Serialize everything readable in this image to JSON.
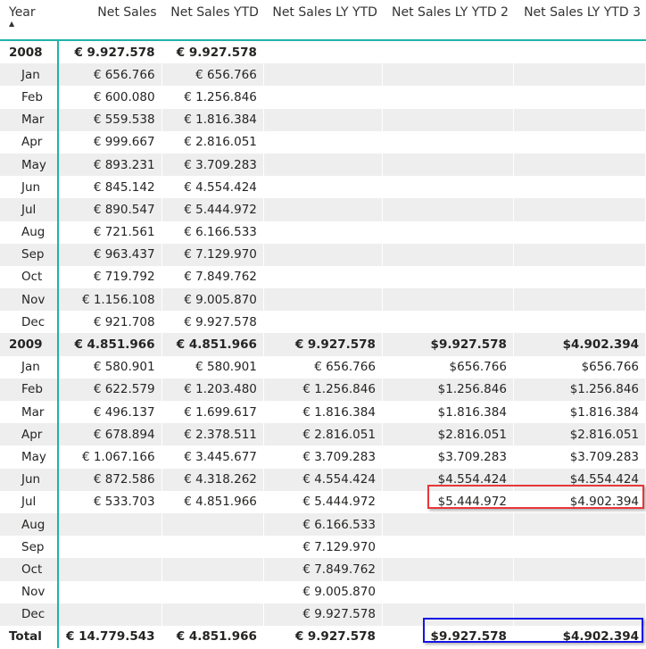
{
  "headers": [
    "Year",
    "Net Sales",
    "Net Sales YTD",
    "Net Sales LY YTD",
    "Net Sales LY YTD 2",
    "Net Sales LY YTD 3"
  ],
  "sort_icon": "sort-ascending-icon",
  "highlight_colors": {
    "red": "#e8363a",
    "blue": "#1414e6",
    "accent": "#20b2aa"
  },
  "rows": [
    {
      "label": "2008",
      "level": "year",
      "values": [
        "€ 9.927.578",
        "€ 9.927.578",
        "",
        "",
        ""
      ]
    },
    {
      "label": "Jan",
      "values": [
        "€ 656.766",
        "€ 656.766",
        "",
        "",
        ""
      ]
    },
    {
      "label": "Feb",
      "values": [
        "€ 600.080",
        "€ 1.256.846",
        "",
        "",
        ""
      ]
    },
    {
      "label": "Mar",
      "values": [
        "€ 559.538",
        "€ 1.816.384",
        "",
        "",
        ""
      ]
    },
    {
      "label": "Apr",
      "values": [
        "€ 999.667",
        "€ 2.816.051",
        "",
        "",
        ""
      ]
    },
    {
      "label": "May",
      "values": [
        "€ 893.231",
        "€ 3.709.283",
        "",
        "",
        ""
      ]
    },
    {
      "label": "Jun",
      "values": [
        "€ 845.142",
        "€ 4.554.424",
        "",
        "",
        ""
      ]
    },
    {
      "label": "Jul",
      "values": [
        "€ 890.547",
        "€ 5.444.972",
        "",
        "",
        ""
      ]
    },
    {
      "label": "Aug",
      "values": [
        "€ 721.561",
        "€ 6.166.533",
        "",
        "",
        ""
      ]
    },
    {
      "label": "Sep",
      "values": [
        "€ 963.437",
        "€ 7.129.970",
        "",
        "",
        ""
      ]
    },
    {
      "label": "Oct",
      "values": [
        "€ 719.792",
        "€ 7.849.762",
        "",
        "",
        ""
      ]
    },
    {
      "label": "Nov",
      "values": [
        "€ 1.156.108",
        "€ 9.005.870",
        "",
        "",
        ""
      ]
    },
    {
      "label": "Dec",
      "values": [
        "€ 921.708",
        "€ 9.927.578",
        "",
        "",
        ""
      ]
    },
    {
      "label": "2009",
      "level": "year",
      "values": [
        "€ 4.851.966",
        "€ 4.851.966",
        "€ 9.927.578",
        "$9.927.578",
        "$4.902.394"
      ]
    },
    {
      "label": "Jan",
      "values": [
        "€ 580.901",
        "€ 580.901",
        "€ 656.766",
        "$656.766",
        "$656.766"
      ]
    },
    {
      "label": "Feb",
      "values": [
        "€ 622.579",
        "€ 1.203.480",
        "€ 1.256.846",
        "$1.256.846",
        "$1.256.846"
      ]
    },
    {
      "label": "Mar",
      "values": [
        "€ 496.137",
        "€ 1.699.617",
        "€ 1.816.384",
        "$1.816.384",
        "$1.816.384"
      ]
    },
    {
      "label": "Apr",
      "values": [
        "€ 678.894",
        "€ 2.378.511",
        "€ 2.816.051",
        "$2.816.051",
        "$2.816.051"
      ]
    },
    {
      "label": "May",
      "values": [
        "€ 1.067.166",
        "€ 3.445.677",
        "€ 3.709.283",
        "$3.709.283",
        "$3.709.283"
      ]
    },
    {
      "label": "Jun",
      "values": [
        "€ 872.586",
        "€ 4.318.262",
        "€ 4.554.424",
        "$4.554.424",
        "$4.554.424"
      ]
    },
    {
      "label": "Jul",
      "values": [
        "€ 533.703",
        "€ 4.851.966",
        "€ 5.444.972",
        "$5.444.972",
        "$4.902.394"
      ]
    },
    {
      "label": "Aug",
      "values": [
        "",
        "",
        "€ 6.166.533",
        "",
        ""
      ]
    },
    {
      "label": "Sep",
      "values": [
        "",
        "",
        "€ 7.129.970",
        "",
        ""
      ]
    },
    {
      "label": "Oct",
      "values": [
        "",
        "",
        "€ 7.849.762",
        "",
        ""
      ]
    },
    {
      "label": "Nov",
      "values": [
        "",
        "",
        "€ 9.005.870",
        "",
        ""
      ]
    },
    {
      "label": "Dec",
      "values": [
        "",
        "",
        "€ 9.927.578",
        "",
        ""
      ]
    },
    {
      "label": "Total",
      "level": "total",
      "values": [
        "€ 14.779.543",
        "€ 4.851.966",
        "€ 9.927.578",
        "$9.927.578",
        "$4.902.394"
      ]
    }
  ]
}
